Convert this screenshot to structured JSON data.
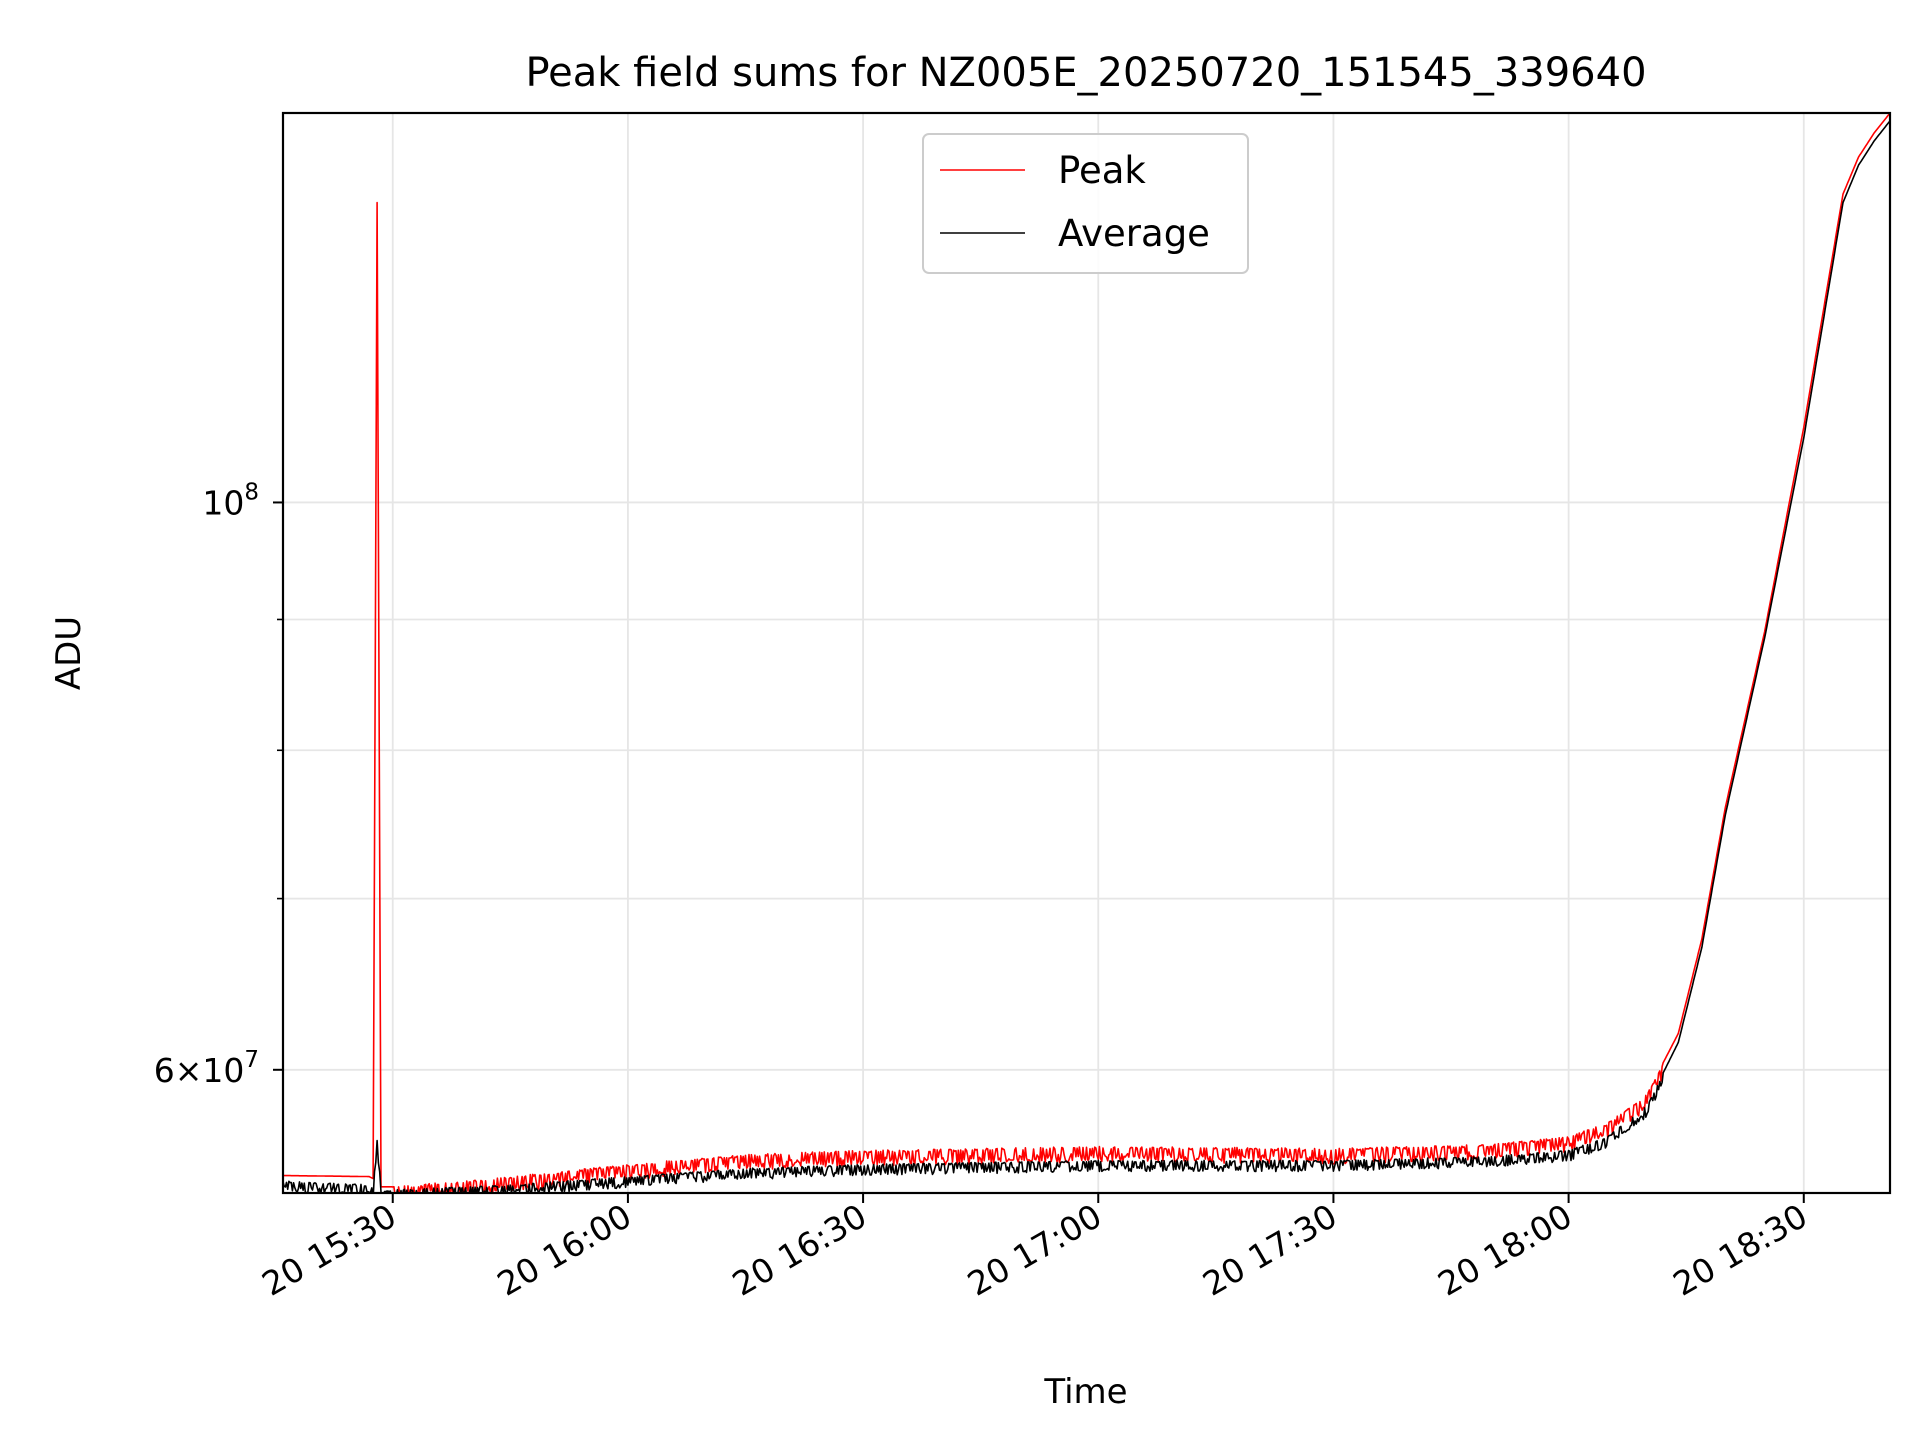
{
  "chart_data": {
    "type": "line",
    "title": "Peak field sums for NZ005E_20250720_151545_339640",
    "xlabel": "Time",
    "ylabel": "ADU",
    "x_axis": {
      "kind": "time",
      "range": [
        "2025-07-20 15:16",
        "2025-07-20 18:41"
      ],
      "ticks": [
        {
          "value": "2025-07-20 15:30",
          "label": "20 15:30"
        },
        {
          "value": "2025-07-20 16:00",
          "label": "20 16:00"
        },
        {
          "value": "2025-07-20 16:30",
          "label": "20 16:30"
        },
        {
          "value": "2025-07-20 17:00",
          "label": "20 17:00"
        },
        {
          "value": "2025-07-20 17:30",
          "label": "20 17:30"
        },
        {
          "value": "2025-07-20 18:00",
          "label": "20 18:00"
        },
        {
          "value": "2025-07-20 18:30",
          "label": "20 18:30"
        }
      ]
    },
    "y_axis": {
      "scale": "log",
      "range": [
        53700000,
        142000000
      ],
      "major_ticks": [
        {
          "value": 100000000,
          "label": "10^8",
          "base": "10",
          "exp": "8"
        },
        {
          "value": 60000000,
          "label": "6×10^7",
          "base": "6×10",
          "exp": "7"
        }
      ],
      "minor_ticks": [
        70000000,
        80000000,
        90000000
      ]
    },
    "grid": true,
    "legend": {
      "position": "top-center"
    },
    "series": [
      {
        "name": "Peak",
        "color": "#ff0000",
        "noise": {
          "start": "2025-07-20 15:30",
          "end": "2025-07-20 18:12",
          "amplitude_fraction": 0.014
        },
        "points": [
          {
            "t": "2025-07-20 15:16",
            "v": 54550000
          },
          {
            "t": "2025-07-20 15:27",
            "v": 54500000
          },
          {
            "t": "2025-07-20 15:27:30",
            "v": 54400000
          },
          {
            "t": "2025-07-20 15:28",
            "v": 131000000
          },
          {
            "t": "2025-07-20 15:28:30",
            "v": 54000000
          },
          {
            "t": "2025-07-20 15:30",
            "v": 54000000
          },
          {
            "t": "2025-07-20 15:45",
            "v": 54500000
          },
          {
            "t": "2025-07-20 16:00",
            "v": 55100000
          },
          {
            "t": "2025-07-20 16:15",
            "v": 55600000
          },
          {
            "t": "2025-07-20 16:30",
            "v": 55800000
          },
          {
            "t": "2025-07-20 17:00",
            "v": 56000000
          },
          {
            "t": "2025-07-20 17:30",
            "v": 55900000
          },
          {
            "t": "2025-07-20 17:50",
            "v": 56100000
          },
          {
            "t": "2025-07-20 18:00",
            "v": 56500000
          },
          {
            "t": "2025-07-20 18:05",
            "v": 57200000
          },
          {
            "t": "2025-07-20 18:10",
            "v": 58700000
          },
          {
            "t": "2025-07-20 18:14",
            "v": 62000000
          },
          {
            "t": "2025-07-20 18:17",
            "v": 67500000
          },
          {
            "t": "2025-07-20 18:20",
            "v": 76000000
          },
          {
            "t": "2025-07-20 18:25",
            "v": 89000000
          },
          {
            "t": "2025-07-20 18:30",
            "v": 107000000
          },
          {
            "t": "2025-07-20 18:35",
            "v": 132000000
          },
          {
            "t": "2025-07-20 18:37",
            "v": 136500000
          },
          {
            "t": "2025-07-20 18:39",
            "v": 139500000
          },
          {
            "t": "2025-07-20 18:41",
            "v": 142000000
          }
        ]
      },
      {
        "name": "Average",
        "color": "#000000",
        "noise": {
          "start": "2025-07-20 15:16",
          "end": "2025-07-20 18:12",
          "amplitude_fraction": 0.01
        },
        "points": [
          {
            "t": "2025-07-20 15:16",
            "v": 54300000
          },
          {
            "t": "2025-07-20 15:27",
            "v": 54100000
          },
          {
            "t": "2025-07-20 15:27:30",
            "v": 53900000
          },
          {
            "t": "2025-07-20 15:28",
            "v": 56700000
          },
          {
            "t": "2025-07-20 15:28:30",
            "v": 53800000
          },
          {
            "t": "2025-07-20 15:30",
            "v": 53850000
          },
          {
            "t": "2025-07-20 15:45",
            "v": 54100000
          },
          {
            "t": "2025-07-20 16:00",
            "v": 54500000
          },
          {
            "t": "2025-07-20 16:15",
            "v": 54900000
          },
          {
            "t": "2025-07-20 16:30",
            "v": 55100000
          },
          {
            "t": "2025-07-20 17:00",
            "v": 55300000
          },
          {
            "t": "2025-07-20 17:30",
            "v": 55300000
          },
          {
            "t": "2025-07-20 17:50",
            "v": 55500000
          },
          {
            "t": "2025-07-20 18:00",
            "v": 55800000
          },
          {
            "t": "2025-07-20 18:05",
            "v": 56500000
          },
          {
            "t": "2025-07-20 18:10",
            "v": 58100000
          },
          {
            "t": "2025-07-20 18:14",
            "v": 61500000
          },
          {
            "t": "2025-07-20 18:17",
            "v": 67000000
          },
          {
            "t": "2025-07-20 18:20",
            "v": 75500000
          },
          {
            "t": "2025-07-20 18:25",
            "v": 88500000
          },
          {
            "t": "2025-07-20 18:30",
            "v": 106000000
          },
          {
            "t": "2025-07-20 18:35",
            "v": 131000000
          },
          {
            "t": "2025-07-20 18:37",
            "v": 135500000
          },
          {
            "t": "2025-07-20 18:39",
            "v": 138500000
          },
          {
            "t": "2025-07-20 18:41",
            "v": 141000000
          }
        ]
      }
    ]
  }
}
